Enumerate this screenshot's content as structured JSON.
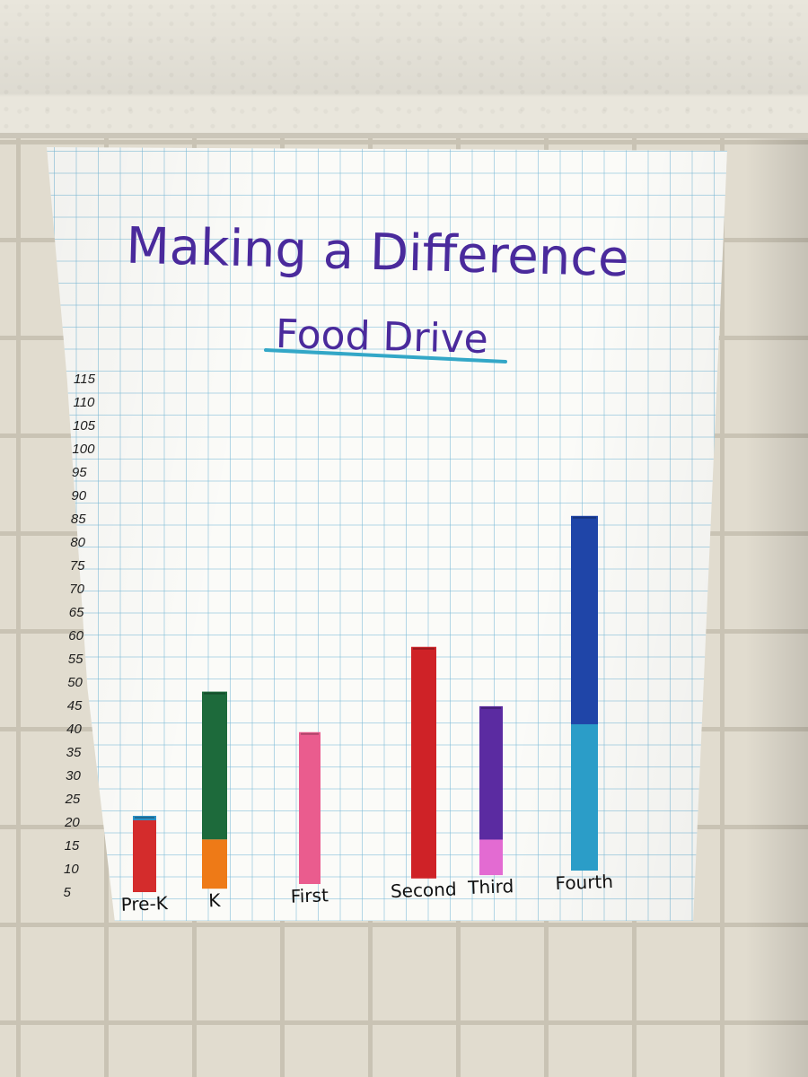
{
  "chart_data": {
    "type": "bar",
    "title": "Making a Difference",
    "subtitle": "Food Drive",
    "xlabel": "",
    "ylabel": "",
    "yticks": [
      5,
      10,
      15,
      20,
      25,
      30,
      35,
      40,
      45,
      50,
      55,
      60,
      65,
      70,
      75,
      80,
      85,
      90,
      95,
      100,
      105,
      110,
      115
    ],
    "ylim": [
      0,
      115
    ],
    "grid": true,
    "categories": [
      "Pre-K",
      "K",
      "First",
      "Second",
      "Third",
      "Fourth"
    ],
    "bars": [
      {
        "category": "Pre-K",
        "segments": [
          {
            "value": 16,
            "color": "#d42c2c"
          },
          {
            "value": 1,
            "color": "#2b8fc4"
          }
        ]
      },
      {
        "category": "K",
        "segments": [
          {
            "value": 11,
            "color": "#ee7a17"
          },
          {
            "value": 33,
            "color": "#1d6a3b"
          }
        ]
      },
      {
        "category": "First",
        "segments": [
          {
            "value": 34,
            "color": "#ea5c8e"
          }
        ]
      },
      {
        "category": "Second",
        "segments": [
          {
            "value": 52,
            "color": "#cf2227"
          }
        ]
      },
      {
        "category": "Third",
        "segments": [
          {
            "value": 8,
            "color": "#e36bd2"
          },
          {
            "value": 30,
            "color": "#5b2ba1"
          }
        ]
      },
      {
        "category": "Fourth",
        "segments": [
          {
            "value": 33,
            "color": "#2b9dc8"
          },
          {
            "value": 47,
            "color": "#1f45a8"
          }
        ]
      }
    ],
    "colors": {
      "title_ink": "#4a2a9c",
      "underline": "#33a7c7"
    }
  }
}
